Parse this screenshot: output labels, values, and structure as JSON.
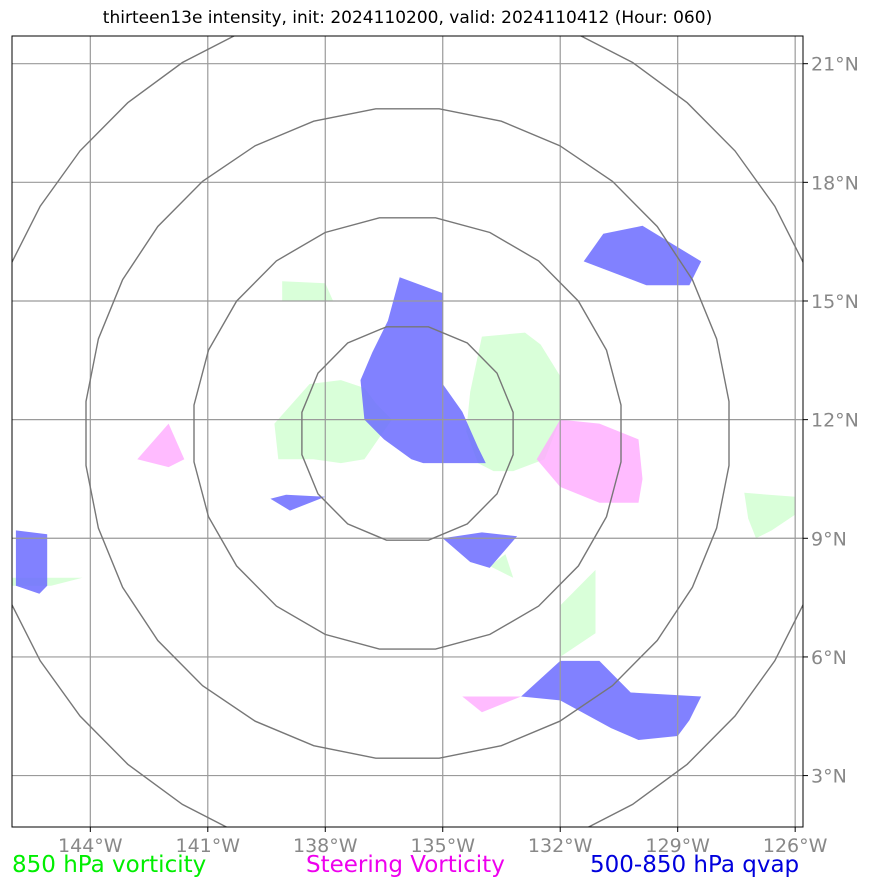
{
  "title": "thirteen13e intensity, init: 2024110200, valid: 2024110412 (Hour: 060)",
  "map": {
    "lon_range": [
      -146.0,
      -125.8
    ],
    "lat_range": [
      1.7,
      21.7
    ],
    "lon_ticks": [
      {
        "value": -144,
        "label": "144°W"
      },
      {
        "value": -141,
        "label": "141°W"
      },
      {
        "value": -138,
        "label": "138°W"
      },
      {
        "value": -135,
        "label": "135°W"
      },
      {
        "value": -132,
        "label": "132°W"
      },
      {
        "value": -129,
        "label": "129°W"
      },
      {
        "value": -126,
        "label": "126°W"
      }
    ],
    "lat_ticks": [
      {
        "value": 3,
        "label": "3°N"
      },
      {
        "value": 6,
        "label": "6°N"
      },
      {
        "value": 9,
        "label": "9°N"
      },
      {
        "value": 12,
        "label": "12°N"
      },
      {
        "value": 15,
        "label": "15°N"
      },
      {
        "value": 18,
        "label": "18°N"
      },
      {
        "value": 21,
        "label": "21°N"
      }
    ],
    "storm_center": {
      "lon": -135.9,
      "lat": 11.65
    },
    "range_ring_radii_deg": [
      2.75,
      5.5,
      8.25,
      11.0
    ],
    "colors": {
      "vorticity_850": "#ccffcc",
      "steering_vorticity": "#ffaaff",
      "qvap_500_850": "#6b6bff",
      "grid": "#9a9a9a",
      "rings": "#777777",
      "tick_text": "#888888"
    }
  },
  "fields": {
    "vorticity_850": [
      [
        [
          -139.1,
          15.5
        ],
        [
          -138.0,
          15.45
        ],
        [
          -137.8,
          15.0
        ],
        [
          -139.1,
          15.0
        ]
      ],
      [
        [
          -137.0,
          12.8
        ],
        [
          -136.7,
          12.4
        ],
        [
          -136.3,
          12.0
        ],
        [
          -137.0,
          11.0
        ],
        [
          -137.6,
          10.9
        ],
        [
          -138.3,
          11.0
        ],
        [
          -139.2,
          11.0
        ],
        [
          -139.3,
          11.9
        ],
        [
          -138.4,
          12.9
        ],
        [
          -137.6,
          13.0
        ]
      ],
      [
        [
          -134.0,
          14.1
        ],
        [
          -132.9,
          14.2
        ],
        [
          -132.5,
          13.9
        ],
        [
          -132.0,
          13.1
        ],
        [
          -132.0,
          12.0
        ],
        [
          -132.4,
          11.0
        ],
        [
          -133.2,
          10.7
        ],
        [
          -133.7,
          10.7
        ],
        [
          -134.1,
          10.9
        ],
        [
          -134.4,
          11.7
        ],
        [
          -134.3,
          12.7
        ]
      ],
      [
        [
          -127.3,
          10.15
        ],
        [
          -126.0,
          10.05
        ],
        [
          -126.0,
          9.6
        ],
        [
          -126.6,
          9.2
        ],
        [
          -127.0,
          9.0
        ],
        [
          -127.2,
          9.5
        ]
      ],
      [
        [
          -132.0,
          6.0
        ],
        [
          -131.1,
          6.6
        ],
        [
          -131.1,
          8.2
        ],
        [
          -132.0,
          7.3
        ]
      ],
      [
        [
          -146.0,
          8.0
        ],
        [
          -144.2,
          8.0
        ],
        [
          -145.0,
          7.8
        ],
        [
          -146.0,
          7.8
        ]
      ],
      [
        [
          -133.8,
          8.3
        ],
        [
          -133.4,
          8.6
        ],
        [
          -133.2,
          8.0
        ]
      ]
    ],
    "steering_vorticity": [
      [
        [
          -142.0,
          11.9
        ],
        [
          -141.6,
          11.0
        ],
        [
          -142.0,
          10.8
        ],
        [
          -142.8,
          11.0
        ]
      ],
      [
        [
          -132.0,
          12.0
        ],
        [
          -131.0,
          11.9
        ],
        [
          -130.0,
          11.5
        ],
        [
          -129.9,
          10.5
        ],
        [
          -130.0,
          9.9
        ],
        [
          -131.0,
          9.9
        ],
        [
          -132.0,
          10.3
        ],
        [
          -132.6,
          11.0
        ]
      ],
      [
        [
          -133.9,
          5.0
        ],
        [
          -133.0,
          5.0
        ],
        [
          -134.0,
          4.6
        ],
        [
          -134.5,
          5.0
        ]
      ]
    ],
    "qvap_500_850": [
      [
        [
          -136.1,
          15.6
        ],
        [
          -135.0,
          15.2
        ],
        [
          -135.0,
          12.9
        ],
        [
          -134.5,
          12.2
        ],
        [
          -134.1,
          11.3
        ],
        [
          -133.9,
          10.9
        ],
        [
          -135.0,
          10.9
        ],
        [
          -135.5,
          10.9
        ],
        [
          -135.8,
          11.0
        ],
        [
          -136.5,
          11.5
        ],
        [
          -137.0,
          12.0
        ],
        [
          -137.1,
          13.0
        ],
        [
          -136.8,
          13.7
        ],
        [
          -136.4,
          14.5
        ]
      ],
      [
        [
          -130.9,
          16.7
        ],
        [
          -129.9,
          16.9
        ],
        [
          -128.4,
          16.0
        ],
        [
          -128.7,
          15.4
        ],
        [
          -129.8,
          15.4
        ],
        [
          -131.4,
          16.0
        ]
      ],
      [
        [
          -139.0,
          10.1
        ],
        [
          -138.0,
          10.05
        ],
        [
          -138.9,
          9.7
        ],
        [
          -139.4,
          10.0
        ]
      ],
      [
        [
          -134.0,
          9.15
        ],
        [
          -133.1,
          9.05
        ],
        [
          -133.8,
          8.25
        ],
        [
          -134.3,
          8.4
        ],
        [
          -135.0,
          9.0
        ]
      ],
      [
        [
          -145.9,
          9.2
        ],
        [
          -145.1,
          9.1
        ],
        [
          -145.1,
          7.8
        ],
        [
          -145.3,
          7.6
        ],
        [
          -145.9,
          7.8
        ]
      ],
      [
        [
          -132.0,
          5.9
        ],
        [
          -131.0,
          5.9
        ],
        [
          -130.2,
          5.1
        ],
        [
          -128.4,
          5.0
        ],
        [
          -128.7,
          4.4
        ],
        [
          -129.0,
          4.0
        ],
        [
          -130.0,
          3.9
        ],
        [
          -130.7,
          4.2
        ],
        [
          -132.0,
          4.9
        ],
        [
          -133.0,
          5.0
        ]
      ]
    ]
  },
  "legend": {
    "vorticity_850": "850 hPa vorticity",
    "steering_vorticity": "Steering Vorticity",
    "qvap_500_850": "500-850 hPa qvap"
  }
}
